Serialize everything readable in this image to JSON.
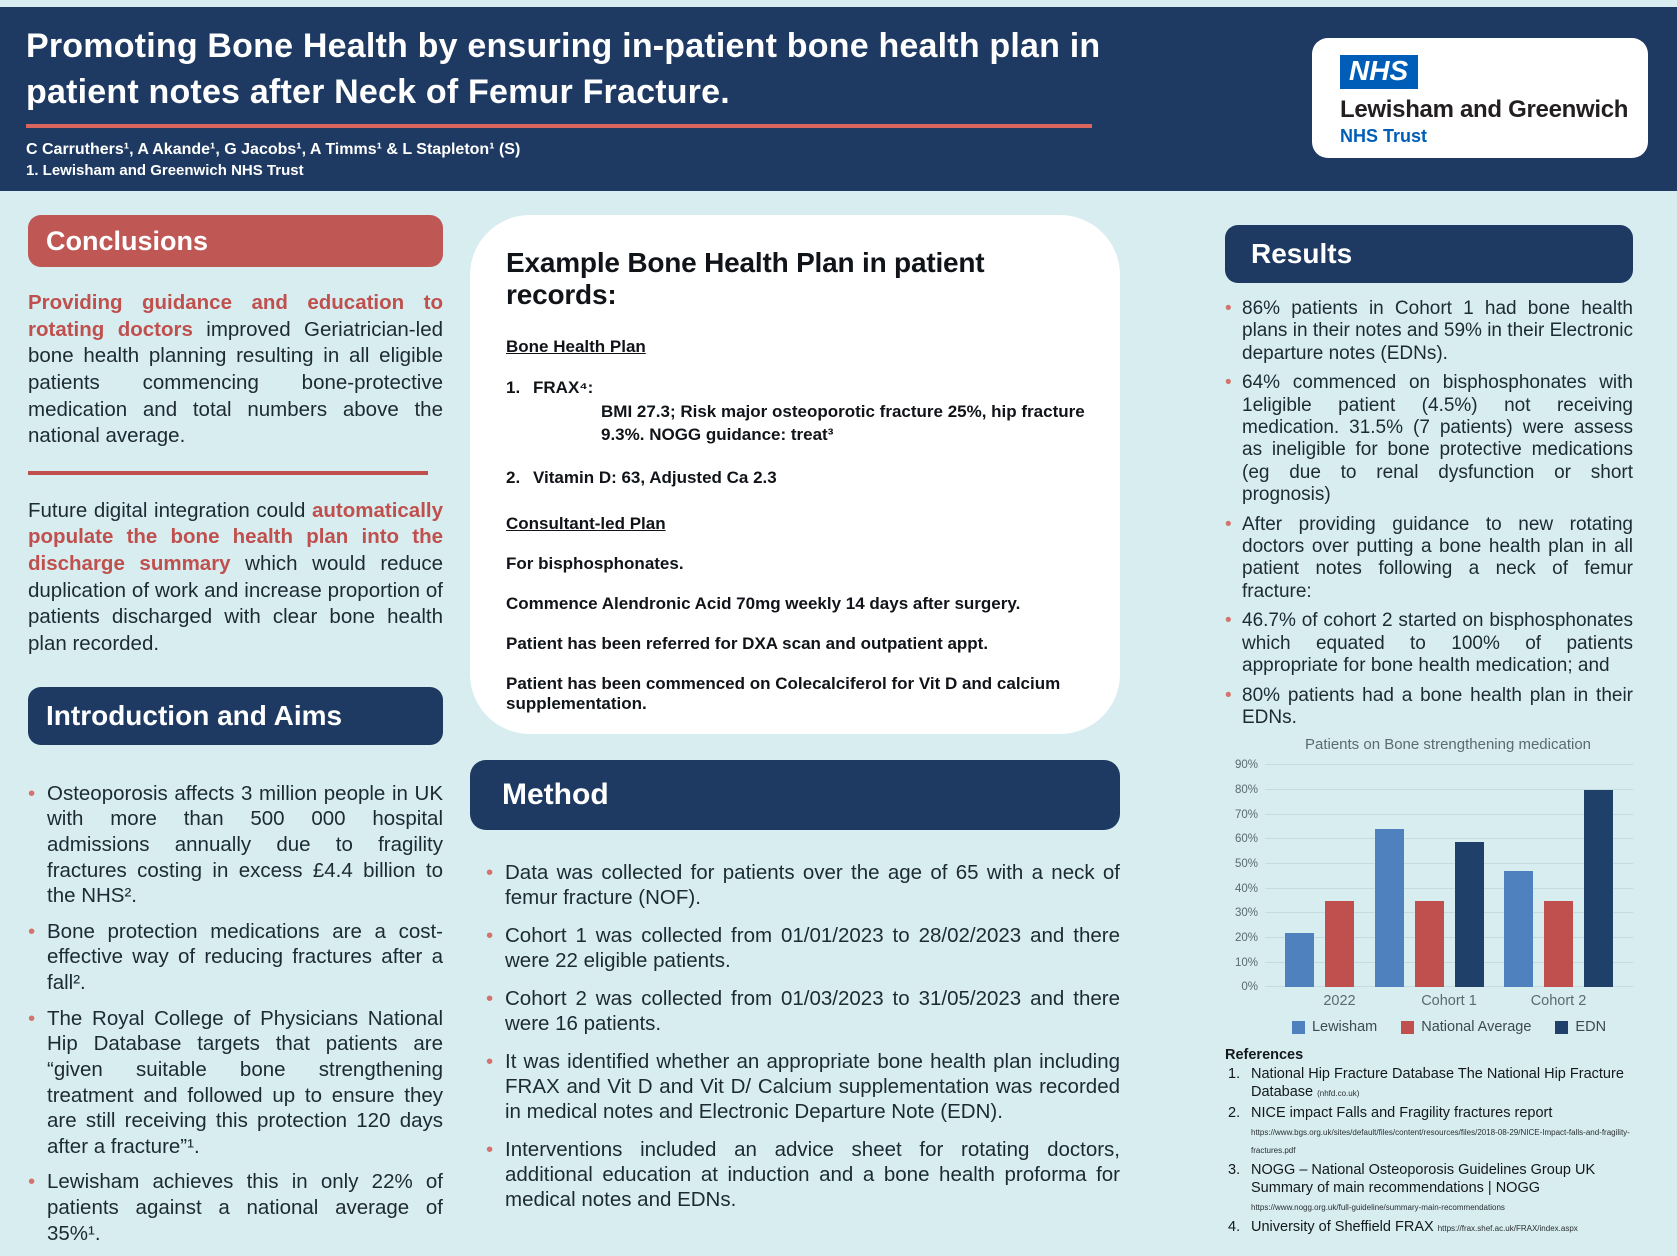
{
  "colors": {
    "navy": "#1e3a63",
    "red_header": "#bf5755",
    "red_accent": "#c0504d",
    "salmon_rule": "#d9655c",
    "background": "#d7edf0",
    "nhs_blue": "#005eb8"
  },
  "header": {
    "title_line1": "Promoting Bone Health by ensuring in-patient bone health plan in",
    "title_line2": "patient notes after Neck of Femur Fracture.",
    "authors": "C Carruthers¹, A Akande¹, G Jacobs¹, A Timms¹ & L Stapleton¹ (S)",
    "affiliation": "1. Lewisham and Greenwich NHS Trust",
    "logo": {
      "nhs": "NHS",
      "org": "Lewisham and Greenwich",
      "sub": "NHS Trust"
    }
  },
  "conclusions": {
    "heading": "Conclusions",
    "p1_red": "Providing guidance and education to rotating doctors",
    "p1_rest": " improved Geriatrician-led bone health planning resulting in all eligible patients commencing bone-protective medication and total numbers above the national average.",
    "p2_pre": "Future digital integration could ",
    "p2_red": "automatically populate the bone health plan into the discharge summary",
    "p2_rest": " which would reduce duplication of work and increase proportion of patients discharged with clear bone health plan recorded."
  },
  "introduction": {
    "heading": "Introduction and Aims",
    "bullets": [
      "Osteoporosis affects 3 million people in UK with more than 500 000 hospital admissions annually due to fragility fractures costing in excess £4.4 billion to the NHS².",
      "Bone protection medications are a cost-effective way of reducing fractures after a fall².",
      "The Royal College of Physicians National Hip Database targets that patients are “given suitable bone strengthening treatment and followed up to ensure they are still receiving this protection 120 days after a fracture”¹.",
      "Lewisham achieves this in only 22% of patients against a national average of 35%¹."
    ]
  },
  "example_plan": {
    "heading": "Example Bone Health Plan in patient records:",
    "section1_title": "Bone Health Plan",
    "item1_num": "1.",
    "item1_text": "FRAX⁴:",
    "item1_detail": "BMI 27.3; Risk major osteoporotic fracture 25%, hip fracture 9.3%. NOGG guidance: treat³",
    "item2_num": "2.",
    "item2_text": "Vitamin D: 63, Adjusted Ca 2.3",
    "section2_title": "Consultant-led Plan",
    "lines": [
      "For bisphosphonates.",
      "Commence Alendronic Acid 70mg weekly 14 days after surgery.",
      "Patient has been referred for DXA scan and outpatient appt.",
      "Patient has been commenced on Colecalciferol for Vit D and calcium supplementation."
    ]
  },
  "method": {
    "heading": "Method",
    "bullets": [
      "Data was collected for patients over the age of 65 with a neck of femur fracture (NOF).",
      "Cohort 1 was collected from 01/01/2023 to 28/02/2023 and there were 22 eligible patients.",
      "Cohort 2 was collected from 01/03/2023 to 31/05/2023 and there were 16 patients.",
      "It was identified whether an appropriate bone health plan including FRAX and Vit D and Vit D/ Calcium supplementation was recorded in medical notes and Electronic Departure Note (EDN).",
      "Interventions included an advice sheet for rotating doctors, additional education at induction and a bone health proforma for medical notes and EDNs."
    ]
  },
  "results": {
    "heading": "Results",
    "bullets": [
      "86% patients in Cohort 1 had bone health plans in their notes and 59% in their Electronic departure notes (EDNs).",
      "64% commenced on bisphosphonates with 1eligible patient (4.5%) not receiving medication. 31.5% (7 patients) were assess as ineligible for bone protective medications (eg due to renal dysfunction or short prognosis)",
      "After providing guidance to new rotating doctors over putting a bone health plan in all patient notes following a neck of femur fracture:",
      "46.7% of cohort 2 started on bisphosphonates which equated to 100% of patients appropriate for bone health medication; and",
      "80% patients had a bone health plan in their EDNs."
    ]
  },
  "chart_data": {
    "type": "bar",
    "title": "Patients on Bone strengthening medication",
    "categories": [
      "2022",
      "Cohort 1",
      "Cohort 2"
    ],
    "series": [
      {
        "name": "Lewisham",
        "color": "#4e81bd",
        "values": [
          22,
          64,
          47
        ]
      },
      {
        "name": "National Average",
        "color": "#c0504d",
        "values": [
          35,
          35,
          35
        ]
      },
      {
        "name": "EDN",
        "color": "#1f4068",
        "values": [
          null,
          59,
          80
        ]
      }
    ],
    "xlabel": "",
    "ylabel": "",
    "ylim": [
      0,
      90
    ],
    "ytick_step": 10,
    "ytick_format": "percent",
    "grid": true,
    "legend_position": "bottom"
  },
  "references": {
    "heading": "References",
    "items": [
      {
        "num": "1.",
        "text": "National Hip Fracture Database The National Hip Fracture Database ",
        "url": "(nhfd.co.uk)"
      },
      {
        "num": "2.",
        "text": "NICE impact Falls and Fragility fractures report ",
        "url": "https://www.bgs.org.uk/sites/default/files/content/resources/files/2018-08-29/NICE-Impact-falls-and-fragility-fractures.pdf"
      },
      {
        "num": "3.",
        "text": "NOGG – National Osteoporosis Guidelines Group UK Summary of main recommendations | NOGG ",
        "url": "https://www.nogg.org.uk/full-guideline/summary-main-recommendations"
      },
      {
        "num": "4.",
        "text": "University of Sheffield FRAX ",
        "url": "https://frax.shef.ac.uk/FRAX/index.aspx"
      }
    ]
  }
}
